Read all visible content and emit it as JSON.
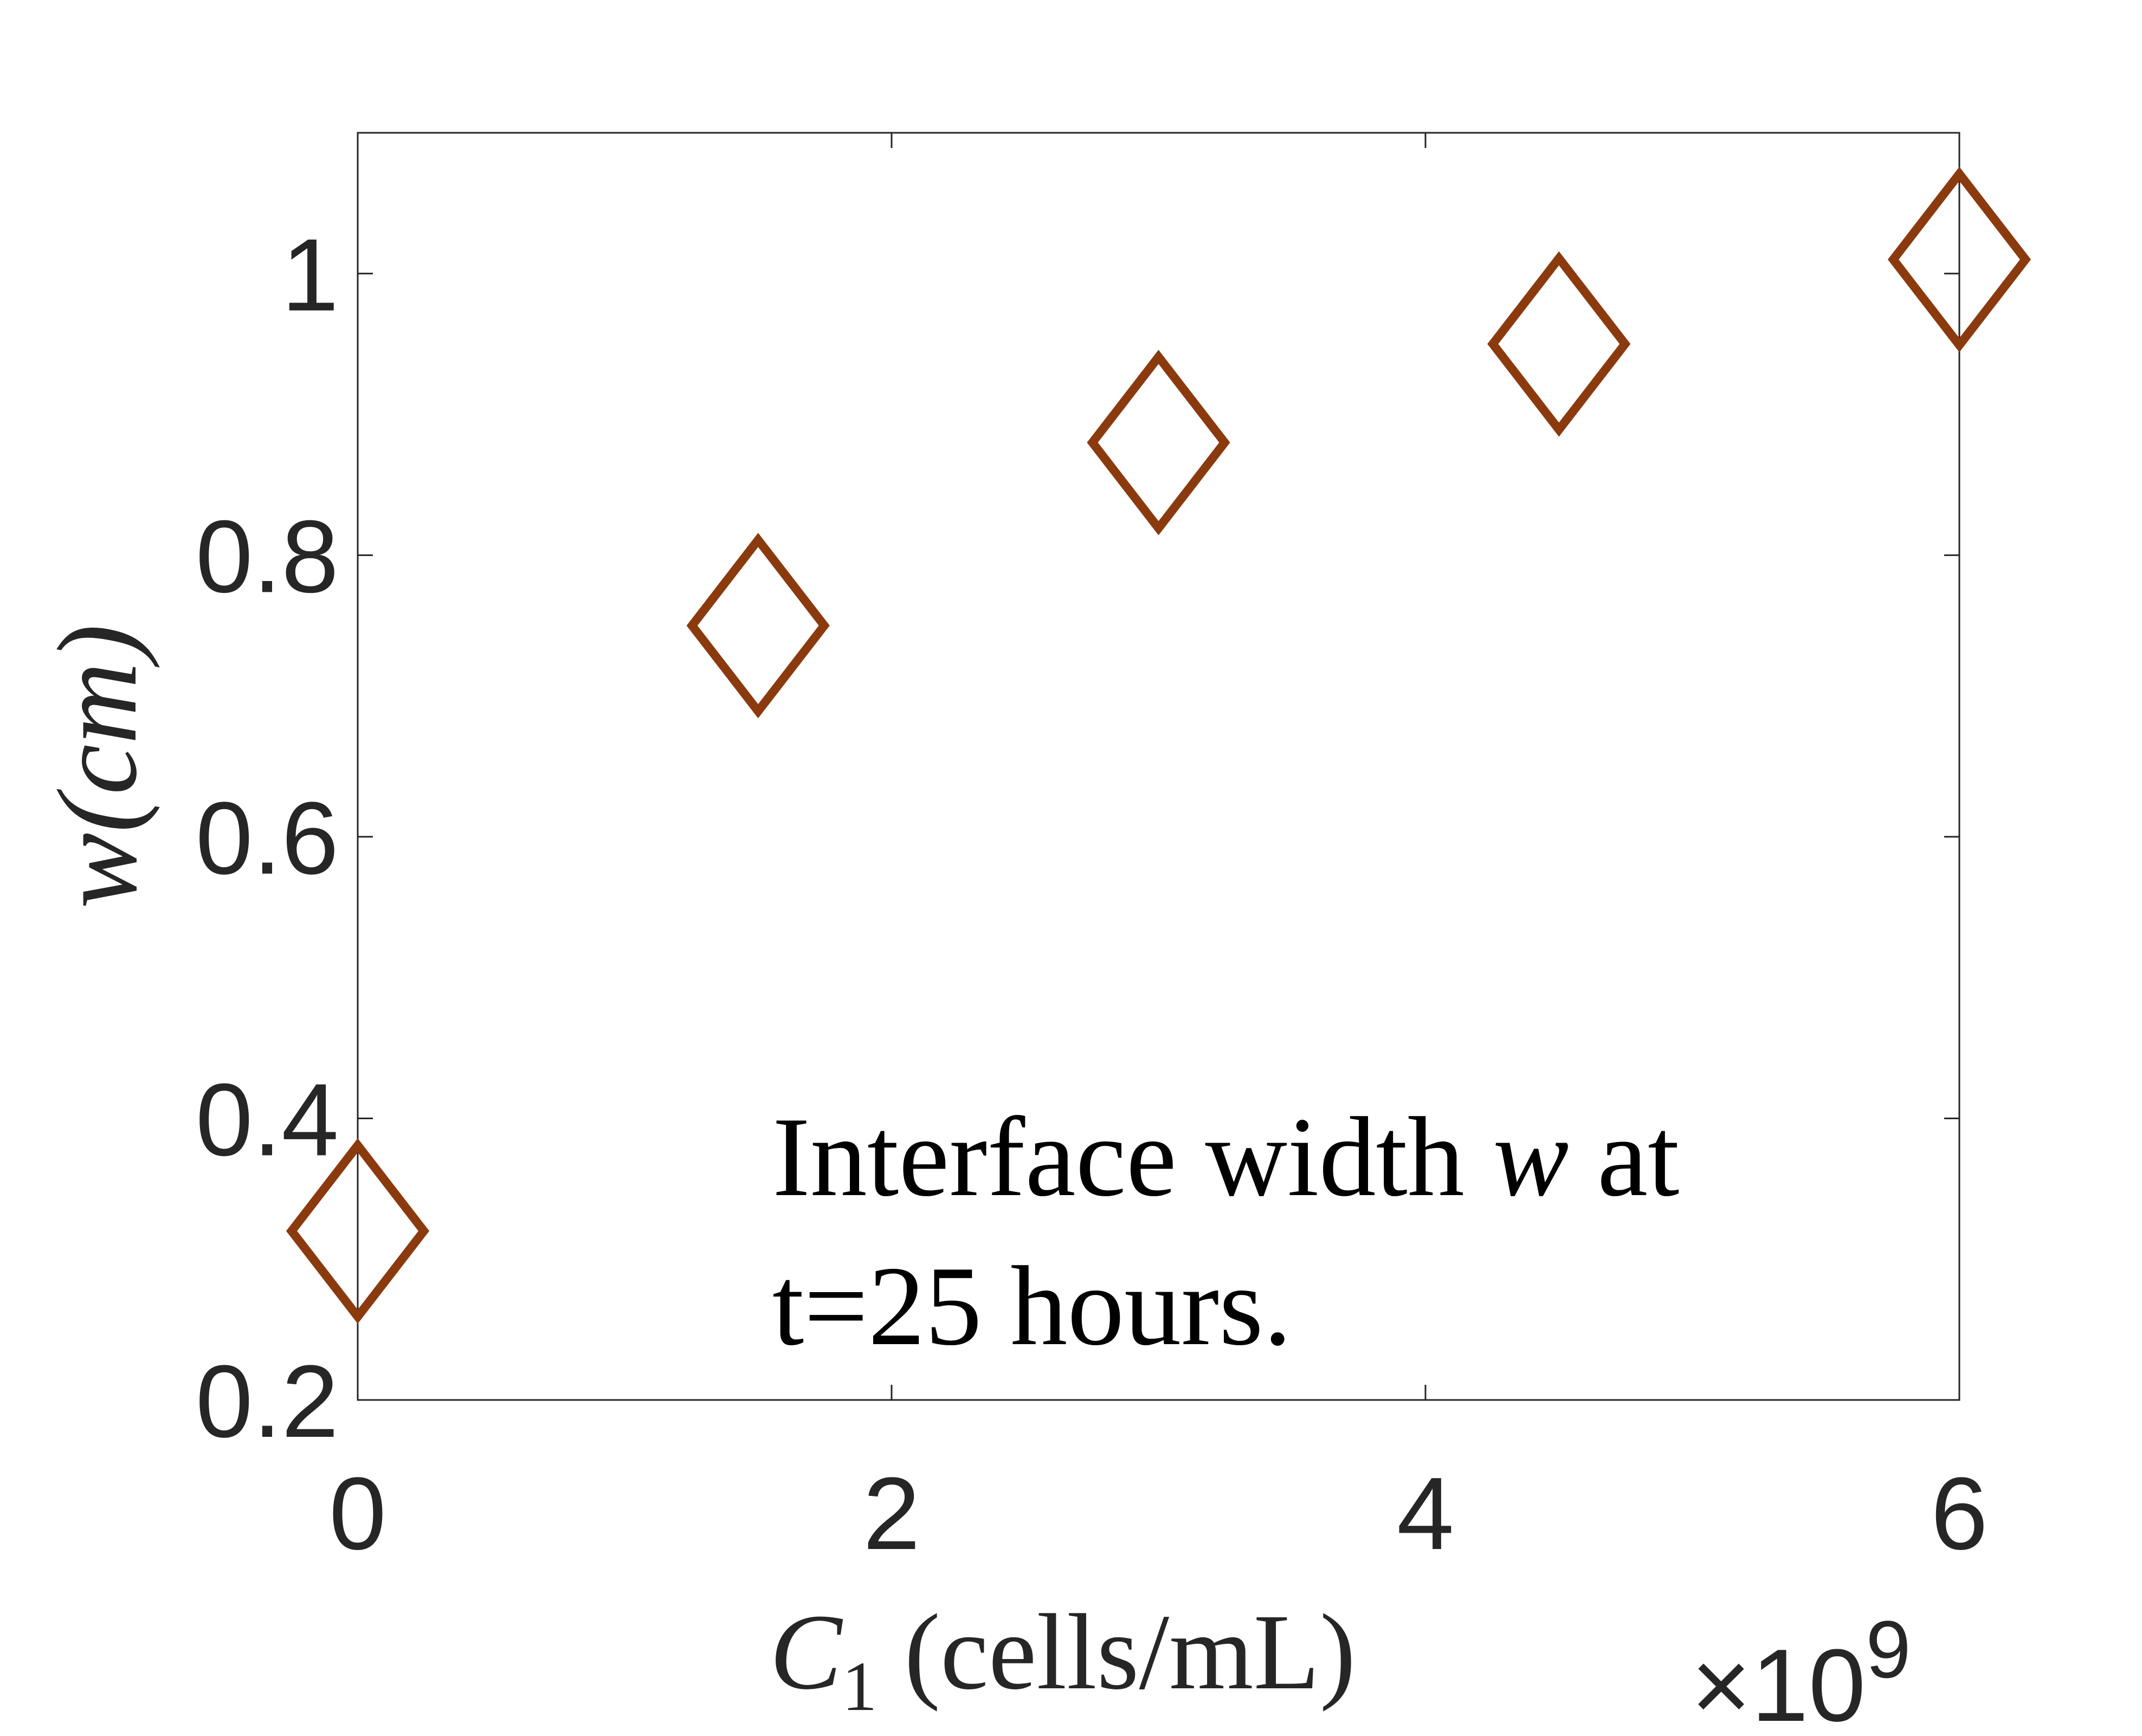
{
  "chart_data": {
    "type": "scatter",
    "title": "",
    "xlabel": "C",
    "xlabel_sub": "1",
    "xlabel_units": "(cells/mL)",
    "ylabel": "w(cm)",
    "x_multiplier_label": "×10",
    "x_multiplier_exp": "9",
    "xlim": [
      0,
      6
    ],
    "ylim": [
      0.2,
      1.1
    ],
    "x_ticks": [
      0,
      2,
      4,
      6
    ],
    "x_tick_labels": [
      "0",
      "2",
      "4",
      "6"
    ],
    "y_ticks": [
      0.2,
      0.4,
      0.6,
      0.8,
      1.0
    ],
    "y_tick_labels": [
      "0.2",
      "0.4",
      "0.6",
      "0.8",
      "1"
    ],
    "grid": false,
    "marker": "diamond",
    "marker_color": "#8B3A0E",
    "series": [
      {
        "x": [
          0,
          1.5,
          3.0,
          4.5,
          6.0
        ],
        "y": [
          0.32,
          0.75,
          0.88,
          0.95,
          1.01
        ]
      }
    ],
    "annotation": {
      "line1_prefix": "Interface width ",
      "line1_var": "w",
      "line1_suffix": " at",
      "line2": "t=25 hours."
    }
  }
}
